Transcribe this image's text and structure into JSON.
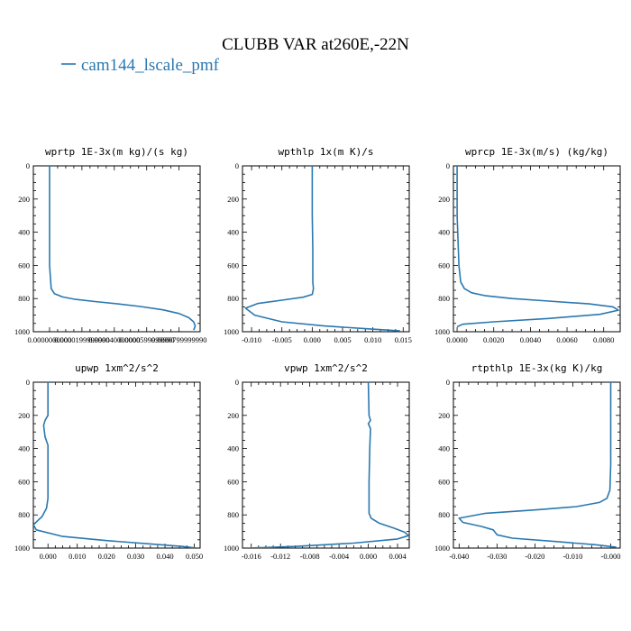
{
  "figure": {
    "title": "CLUBB VAR at260E,-22N",
    "legend_label": "cam144_lscale_pmf",
    "series_color": "#2a78b0"
  },
  "chart_data": [
    {
      "type": "line",
      "title": "wprtp  1E-3x(m kg)/(s kg)",
      "xlim": [
        -1e-05,
        9.3e-05
      ],
      "ylim": [
        1000,
        0
      ],
      "xticks": [
        0.0,
        2e-05,
        4e-05,
        6e-05,
        8e-05
      ],
      "xtick_labels": [
        "0.0000000000",
        "0.0000199999990",
        "0.000040000000",
        "0.0000599999990",
        "0.0000799999990"
      ],
      "yticks": [
        0,
        200,
        400,
        600,
        800,
        1000
      ],
      "series": [
        {
          "x": [
            0,
            0,
            0,
            1e-06,
            3e-06,
            8e-06,
            1.6e-05,
            2.8e-05,
            4.2e-05,
            5.6e-05,
            7e-05,
            8e-05,
            8.6e-05,
            8.9e-05,
            9e-05,
            8.9e-05
          ],
          "y": [
            0,
            300,
            600,
            740,
            770,
            790,
            805,
            818,
            832,
            848,
            868,
            890,
            915,
            940,
            965,
            990
          ]
        }
      ]
    },
    {
      "type": "line",
      "title": "wpthlp  1x(m K)/s",
      "xlim": [
        -0.0115,
        0.016
      ],
      "ylim": [
        1000,
        0
      ],
      "xticks": [
        -0.01,
        -0.005,
        0.0,
        0.005,
        0.01,
        0.015
      ],
      "xtick_labels": [
        "-0.010",
        "-0.005",
        "0.000",
        "0.005",
        "0.010",
        "0.015"
      ],
      "yticks": [
        0,
        200,
        400,
        600,
        800,
        1000
      ],
      "series": [
        {
          "x": [
            0,
            0,
            0.0001,
            0.0001,
            0.0002,
            0.0001,
            0.0,
            -0.0015,
            -0.005,
            -0.009,
            -0.011,
            -0.0095,
            -0.005,
            0.002,
            0.009,
            0.0145
          ],
          "y": [
            0,
            300,
            500,
            700,
            740,
            760,
            775,
            792,
            810,
            830,
            858,
            900,
            940,
            965,
            982,
            995
          ]
        }
      ]
    },
    {
      "type": "line",
      "title": "wprcp  1E-3x(m/s) (kg/kg)",
      "xlim": [
        -0.0002,
        0.0089
      ],
      "ylim": [
        1000,
        0
      ],
      "xticks": [
        0.0,
        0.002,
        0.004,
        0.006,
        0.008
      ],
      "xtick_labels": [
        "0.0000",
        "0.0020",
        "0.0040",
        "0.0060",
        "0.0080"
      ],
      "yticks": [
        0,
        200,
        400,
        600,
        800,
        1000
      ],
      "series": [
        {
          "x": [
            0,
            0,
            0.0001,
            0.0002,
            0.0004,
            0.0008,
            0.0015,
            0.003,
            0.005,
            0.0072,
            0.0085,
            0.0088,
            0.0078,
            0.005,
            0.002,
            0.0003,
            0
          ],
          "y": [
            0,
            300,
            600,
            700,
            740,
            765,
            782,
            800,
            815,
            832,
            850,
            870,
            895,
            920,
            940,
            955,
            970
          ]
        }
      ]
    },
    {
      "type": "line",
      "title": "upwp  1xm^2/s^2",
      "xlim": [
        -0.005,
        0.052
      ],
      "ylim": [
        1000,
        0
      ],
      "xticks": [
        0.0,
        0.01,
        0.02,
        0.03,
        0.04,
        0.05
      ],
      "xtick_labels": [
        "0.000",
        "0.010",
        "0.020",
        "0.030",
        "0.040",
        "0.050"
      ],
      "yticks": [
        0,
        200,
        400,
        600,
        800,
        1000
      ],
      "series": [
        {
          "x": [
            0,
            0,
            -0.001,
            -0.0015,
            -0.001,
            0,
            0,
            -0.0005,
            -0.002,
            -0.005,
            -0.004,
            0.005,
            0.02,
            0.035,
            0.046,
            0.051
          ],
          "y": [
            0,
            200,
            230,
            260,
            330,
            380,
            700,
            760,
            810,
            860,
            890,
            930,
            955,
            975,
            990,
            1000
          ]
        }
      ]
    },
    {
      "type": "line",
      "title": "vpwp  1xm^2/s^2",
      "xlim": [
        -0.0172,
        0.0056
      ],
      "ylim": [
        1000,
        0
      ],
      "xticks": [
        -0.016,
        -0.012,
        -0.008,
        -0.004,
        0.0,
        0.004
      ],
      "xtick_labels": [
        "-0.016",
        "-0.012",
        "-0.008",
        "-0.004",
        "0.000",
        "0.004"
      ],
      "yticks": [
        0,
        200,
        400,
        600,
        800,
        1000
      ],
      "series": [
        {
          "x": [
            0,
            0.0001,
            0.0003,
            0.0,
            0.0003,
            0.0002,
            0.0001,
            0.0001,
            0.0004,
            0.0015,
            0.0035,
            0.005,
            0.0055,
            0.004,
            -0.002,
            -0.01,
            -0.0165
          ],
          "y": [
            0,
            200,
            230,
            250,
            280,
            400,
            600,
            790,
            820,
            850,
            880,
            905,
            925,
            945,
            970,
            990,
            1000
          ]
        }
      ]
    },
    {
      "type": "line",
      "title": "rtpthlp  1E-3x(kg K)/kg",
      "xlim": [
        -0.0415,
        0.0025
      ],
      "ylim": [
        1000,
        0
      ],
      "xticks": [
        -0.04,
        -0.03,
        -0.02,
        -0.01,
        0.0
      ],
      "xtick_labels": [
        "-0.040",
        "-0.030",
        "-0.020",
        "-0.010",
        "-0.000"
      ],
      "yticks": [
        0,
        200,
        400,
        600,
        800,
        1000
      ],
      "series": [
        {
          "x": [
            0,
            0,
            -0.0002,
            -0.001,
            -0.003,
            -0.009,
            -0.02,
            -0.033,
            -0.04,
            -0.039,
            -0.034,
            -0.031,
            -0.03,
            -0.026,
            -0.015,
            -0.004,
            0.0015
          ],
          "y": [
            0,
            500,
            650,
            700,
            725,
            750,
            770,
            790,
            820,
            845,
            870,
            890,
            920,
            940,
            960,
            980,
            995
          ]
        }
      ]
    }
  ]
}
